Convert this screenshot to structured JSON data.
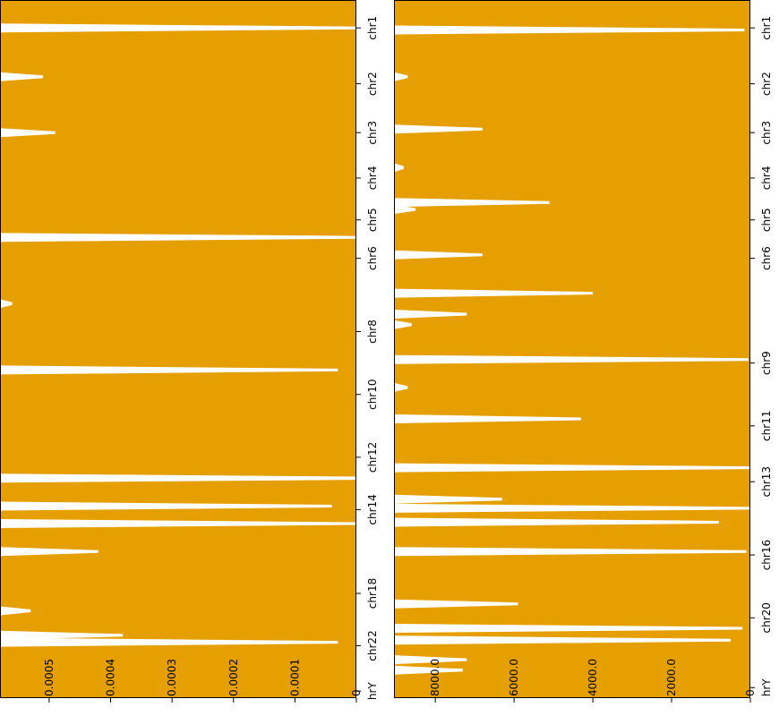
{
  "colors": {
    "fill": "#e69f00",
    "axis": "#000000",
    "background": "#ffffff"
  },
  "chart_data": [
    {
      "type": "area",
      "title": "",
      "xlabel": "",
      "ylabel": "",
      "orientation": "rotated-90",
      "value_axis": {
        "ticks": [
          "0.0005",
          "0.0004",
          "0.0003",
          "0.0002",
          "0.0001",
          "0"
        ],
        "tick_values": [
          0.0005,
          0.0004,
          0.0003,
          0.0002,
          0.0001,
          0
        ],
        "range": [
          0.00058,
          0
        ]
      },
      "chromosome_labels": [
        "chr1",
        "chr2",
        "chr3",
        "chr4",
        "chr5",
        "chr6",
        "chr8",
        "chr10",
        "chr12",
        "chr14",
        "chr18",
        "chr22",
        "chrY"
      ],
      "chromosome_label_text": [
        "chr1",
        "chr2",
        "chr3",
        "chr4",
        "chr5",
        "chr6",
        "chr8",
        "chr10",
        "chr12",
        "chr14",
        "chr18",
        "chr22",
        "hrY"
      ],
      "chromosome_label_positions": [
        0.04,
        0.12,
        0.19,
        0.255,
        0.315,
        0.37,
        0.475,
        0.565,
        0.655,
        0.73,
        0.85,
        0.925,
        0.99
      ],
      "fill_value": 0.00064,
      "gaps": [
        {
          "position": 0.04,
          "value": 0.0
        },
        {
          "position": 0.11,
          "value": 0.00051
        },
        {
          "position": 0.19,
          "value": 0.00049
        },
        {
          "position": 0.245,
          "value": 0.00059
        },
        {
          "position": 0.34,
          "value": 0.0
        },
        {
          "position": 0.435,
          "value": 0.00056
        },
        {
          "position": 0.53,
          "value": 3e-05
        },
        {
          "position": 0.563,
          "value": 0.00062
        },
        {
          "position": 0.62,
          "value": 0.00058
        },
        {
          "position": 0.685,
          "value": -6e-05
        },
        {
          "position": 0.705,
          "value": 0.00062
        },
        {
          "position": 0.725,
          "value": 4e-05
        },
        {
          "position": 0.75,
          "value": 0.0
        },
        {
          "position": 0.79,
          "value": 0.00042
        },
        {
          "position": 0.84,
          "value": 0.00062
        },
        {
          "position": 0.875,
          "value": 0.00053
        },
        {
          "position": 0.91,
          "value": 0.00038
        },
        {
          "position": 0.92,
          "value": 3e-05
        }
      ]
    },
    {
      "type": "area",
      "title": "",
      "xlabel": "",
      "ylabel": "",
      "orientation": "rotated-90",
      "value_axis": {
        "ticks": [
          "8000.0",
          "6000.0",
          "4000.0",
          "2000.0",
          "0"
        ],
        "tick_values": [
          8000,
          6000,
          4000,
          2000,
          0
        ],
        "range": [
          9050,
          0
        ]
      },
      "chromosome_labels": [
        "chr1",
        "chr2",
        "chr3",
        "chr4",
        "chr5",
        "chr6",
        "chr9",
        "chr11",
        "chr13",
        "chr16",
        "chr20",
        "chrY"
      ],
      "chromosome_label_text": [
        "chr1",
        "chr2",
        "chr3",
        "chr4",
        "chr5",
        "chr6",
        "chr9",
        "chr11",
        "chr13",
        "chr16",
        "chr20",
        "hrY"
      ],
      "chromosome_label_positions": [
        0.04,
        0.12,
        0.19,
        0.255,
        0.315,
        0.37,
        0.52,
        0.61,
        0.69,
        0.795,
        0.885,
        0.985
      ],
      "fill_value": 9000,
      "gaps": [
        {
          "position": 0.043,
          "value": 150
        },
        {
          "position": 0.11,
          "value": 8700
        },
        {
          "position": 0.185,
          "value": 6800
        },
        {
          "position": 0.24,
          "value": 8800
        },
        {
          "position": 0.29,
          "value": 5100
        },
        {
          "position": 0.3,
          "value": 8500
        },
        {
          "position": 0.365,
          "value": 6800
        },
        {
          "position": 0.42,
          "value": 4000
        },
        {
          "position": 0.45,
          "value": 7200
        },
        {
          "position": 0.465,
          "value": 8600
        },
        {
          "position": 0.515,
          "value": 50
        },
        {
          "position": 0.555,
          "value": 8700
        },
        {
          "position": 0.6,
          "value": 4300
        },
        {
          "position": 0.67,
          "value": 0
        },
        {
          "position": 0.715,
          "value": 6300
        },
        {
          "position": 0.728,
          "value": 0
        },
        {
          "position": 0.748,
          "value": 800
        },
        {
          "position": 0.79,
          "value": 100
        },
        {
          "position": 0.865,
          "value": 5900
        },
        {
          "position": 0.9,
          "value": 200
        },
        {
          "position": 0.917,
          "value": 500
        },
        {
          "position": 0.945,
          "value": 7200
        },
        {
          "position": 0.96,
          "value": 7300
        }
      ]
    }
  ]
}
